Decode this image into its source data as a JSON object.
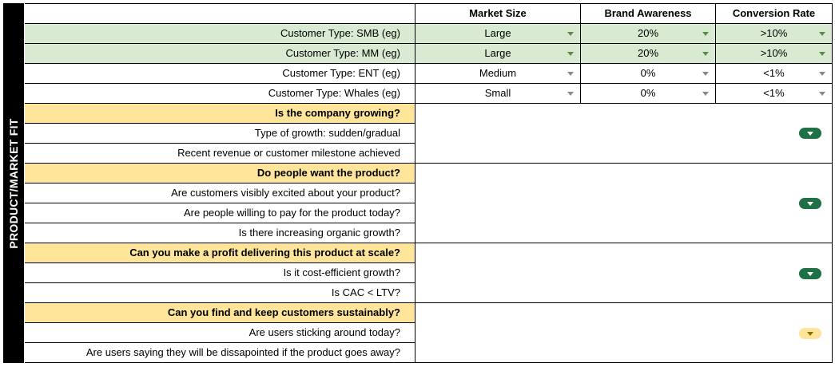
{
  "sidebar": {
    "label": "PRODUCT/MARKET FIT"
  },
  "columns": [
    "Market Size",
    "Brand Awareness",
    "Conversion Rate"
  ],
  "customer_rows": [
    {
      "label": "Customer Type: SMB (eg)",
      "values": [
        "Large",
        "20%",
        ">10%"
      ],
      "highlight": "green"
    },
    {
      "label": "Customer Type: MM (eg)",
      "values": [
        "Large",
        "20%",
        ">10%"
      ],
      "highlight": "green"
    },
    {
      "label": "Customer Type: ENT (eg)",
      "values": [
        "Medium",
        "0%",
        "<1%"
      ],
      "highlight": "none"
    },
    {
      "label": "Customer Type: Whales (eg)",
      "values": [
        "Small",
        "0%",
        "<1%"
      ],
      "highlight": "none"
    }
  ],
  "sections": [
    {
      "heading": "Is the company growing?",
      "items": [
        "Type of growth: sudden/gradual",
        "Recent revenue or customer milestone achieved"
      ],
      "status": "green"
    },
    {
      "heading": "Do people want the product?",
      "items": [
        "Are customers visibly excited about your product?",
        "Are people willing to pay for the product today?",
        "Is there increasing organic growth?"
      ],
      "status": "green"
    },
    {
      "heading": "Can you make a profit delivering this product at scale?",
      "items": [
        "Is it cost-efficient growth?",
        "Is CAC < LTV?"
      ],
      "status": "green"
    },
    {
      "heading": "Can you find and keep customers sustainably?",
      "items": [
        "Are users sticking around today?",
        "Are users saying they will be dissapointed if the product goes away?"
      ],
      "status": "yellow"
    }
  ],
  "colors": {
    "green_fill": "#d9ead3",
    "yellow_fill": "#ffe599",
    "status_green": "#1e7145",
    "status_yellow": "#ffe599"
  }
}
